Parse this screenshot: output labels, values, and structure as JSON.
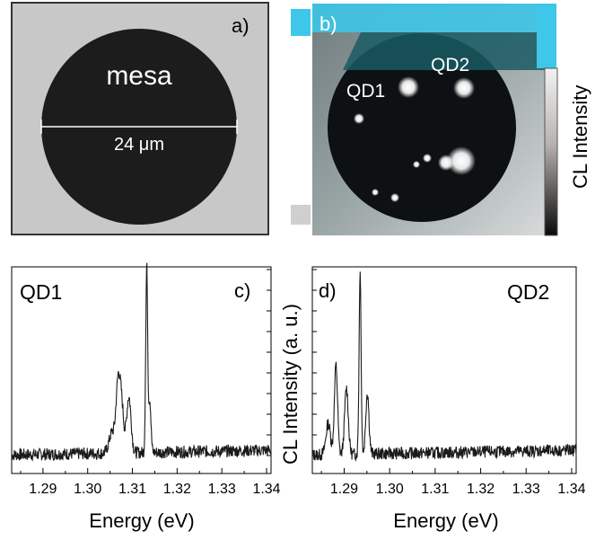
{
  "panels": {
    "a": {
      "label": "a)",
      "mesa_label": "mesa",
      "scale_label": "24 μm",
      "colors": {
        "background": "#c8c8c8",
        "mesa": "#1c1c1c",
        "frame": "#333333"
      }
    },
    "b": {
      "label": "b)",
      "qd1_label": "QD1",
      "qd2_label": "QD2",
      "colorbar_label": "CL Intensity",
      "colors": {
        "cyan": "#3ec7e8",
        "teal": "#1a5a63"
      }
    }
  },
  "chart_data": [
    {
      "type": "line",
      "panel_label": "c)",
      "inset_label": "QD1",
      "xlabel": "Energy (eV)",
      "ylabel": "",
      "xlim": [
        1.283,
        1.341
      ],
      "xticks": [
        "1.29",
        "1.30",
        "1.31",
        "1.32",
        "1.33",
        "1.34"
      ],
      "yticks_shown": false,
      "baseline_level": 0.09,
      "noise_amplitude": 0.03,
      "peaks": [
        {
          "x": 1.3055,
          "height": 0.1,
          "width": 0.0007
        },
        {
          "x": 1.3068,
          "height": 0.32,
          "width": 0.00045
        },
        {
          "x": 1.3076,
          "height": 0.22,
          "width": 0.00045
        },
        {
          "x": 1.3092,
          "height": 0.27,
          "width": 0.0005
        },
        {
          "x": 1.3132,
          "height": 0.9,
          "width": 0.00022
        },
        {
          "x": 1.3139,
          "height": 0.25,
          "width": 0.00025
        }
      ],
      "line_color": "#1a1a1a"
    },
    {
      "type": "line",
      "panel_label": "d)",
      "inset_label": "QD2",
      "xlabel": "Energy (eV)",
      "ylabel": "CL Intensity (a. u.)",
      "xlim": [
        1.283,
        1.341
      ],
      "xticks": [
        "1.29",
        "1.30",
        "1.31",
        "1.32",
        "1.33",
        "1.34"
      ],
      "yticks_shown": false,
      "baseline_level": 0.09,
      "noise_amplitude": 0.03,
      "peaks": [
        {
          "x": 1.2865,
          "height": 0.15,
          "width": 0.0005
        },
        {
          "x": 1.2882,
          "height": 0.43,
          "width": 0.00035
        },
        {
          "x": 1.2905,
          "height": 0.32,
          "width": 0.0004
        },
        {
          "x": 1.2935,
          "height": 0.88,
          "width": 0.00022
        },
        {
          "x": 1.2951,
          "height": 0.3,
          "width": 0.00035
        }
      ],
      "line_color": "#1a1a1a"
    }
  ]
}
